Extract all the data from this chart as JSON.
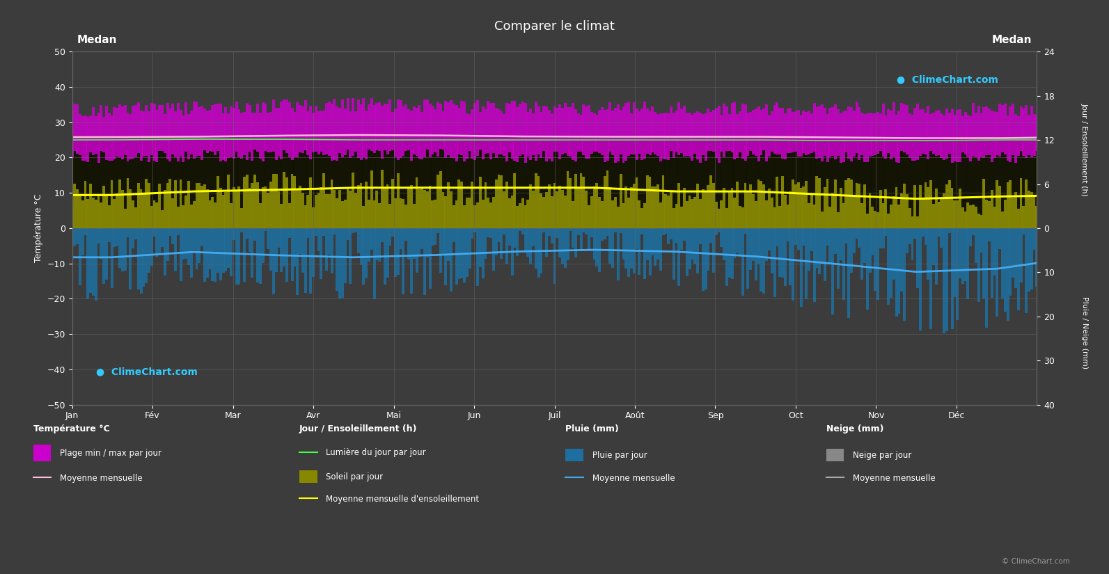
{
  "title": "Comparer le climat",
  "city": "Medan",
  "bg_color": "#3c3c3c",
  "months": [
    "Jan",
    "Fév",
    "Mar",
    "Avr",
    "Mai",
    "Jun",
    "Juil",
    "Août",
    "Sep",
    "Oct",
    "Nov",
    "Déc"
  ],
  "temp_min_monthly": [
    22.0,
    22.0,
    22.5,
    22.5,
    22.5,
    22.0,
    22.0,
    22.0,
    22.0,
    22.0,
    22.0,
    22.0
  ],
  "temp_max_monthly": [
    31.5,
    32.0,
    32.5,
    33.0,
    32.5,
    32.0,
    32.0,
    32.0,
    32.0,
    32.0,
    31.5,
    31.5
  ],
  "temp_mean_monthly": [
    25.8,
    25.9,
    26.2,
    26.4,
    26.3,
    26.0,
    25.9,
    25.9,
    25.9,
    25.7,
    25.5,
    25.5
  ],
  "daylight_monthly": [
    12.0,
    12.1,
    12.1,
    12.0,
    12.0,
    12.0,
    12.0,
    12.0,
    12.0,
    11.9,
    11.9,
    12.0
  ],
  "sunshine_monthly": [
    4.5,
    5.0,
    5.2,
    5.5,
    5.5,
    5.5,
    5.5,
    5.0,
    5.0,
    4.5,
    4.0,
    4.3
  ],
  "rain_daily_mean_mm": [
    6.6,
    5.4,
    6.1,
    6.6,
    6.1,
    5.3,
    4.9,
    5.3,
    6.4,
    8.1,
    9.9,
    9.2
  ],
  "snow_daily_mean_mm": [
    0,
    0,
    0,
    0,
    0,
    0,
    0,
    0,
    0,
    0,
    0,
    0
  ],
  "color_bg": "#3c3c3c",
  "color_temp_fill": "#cc00cc",
  "color_sun_fill": "#888800",
  "color_dark_fill": "#111100",
  "color_rain_fill": "#1e6fa0",
  "color_snow_fill": "#888888",
  "color_temp_mean": "#ffbbdd",
  "color_sun_mean": "#ffff00",
  "color_daylight": "#44ff44",
  "color_rain_mean": "#44aaee",
  "color_snow_mean": "#aaaaaa",
  "color_grid": "#666666",
  "color_text": "#ffffff",
  "left_axis_label": "Température °C",
  "right_axis_sun_label": "Jour / Ensoleillement (h)",
  "right_axis_rain_label": "Pluie / Neige (mm)",
  "legend_col_titles": [
    "Température °C",
    "Jour / Ensoleillement (h)",
    "Pluie (mm)",
    "Neige (mm)"
  ],
  "legend_temp_fill_label": "Plage min / max par jour",
  "legend_temp_mean_label": "Moyenne mensuelle",
  "legend_daylight_label": "Lumière du jour par jour",
  "legend_sun_fill_label": "Soleil par jour",
  "legend_sun_mean_label": "Moyenne mensuelle d'ensoleillement",
  "legend_rain_fill_label": "Pluie par jour",
  "legend_rain_mean_label": "Moyenne mensuelle",
  "legend_snow_fill_label": "Neige par jour",
  "legend_snow_mean_label": "Moyenne mensuelle",
  "watermark": "ClimeChart.com",
  "copyright": "© ClimeChart.com"
}
